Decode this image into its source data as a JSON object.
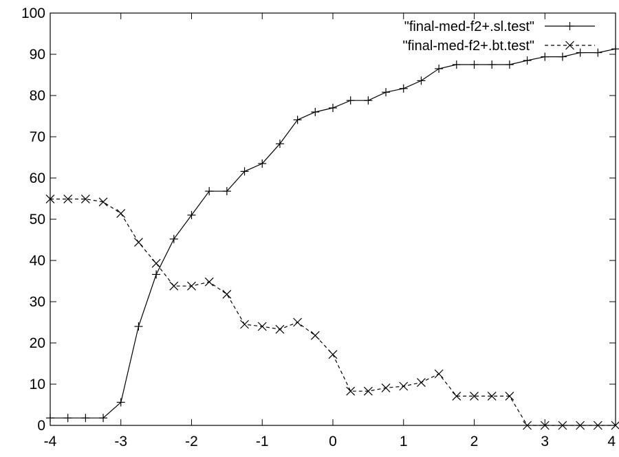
{
  "chart_data": {
    "type": "line",
    "title": "",
    "xlabel": "",
    "ylabel": "",
    "xlim": [
      -4,
      4
    ],
    "ylim": [
      0,
      100
    ],
    "xticks": [
      -4,
      -3,
      -2,
      -1,
      0,
      1,
      2,
      3,
      4
    ],
    "yticks": [
      0,
      10,
      20,
      30,
      40,
      50,
      60,
      70,
      80,
      90,
      100
    ],
    "grid": false,
    "legend_position": "top-right",
    "series": [
      {
        "name": "\"final-med-f2+.sl.test\"",
        "line_style": "solid",
        "marker": "plus",
        "color": "#000000",
        "x": [
          -4,
          -3.75,
          -3.5,
          -3.25,
          -3,
          -2.75,
          -2.5,
          -2.25,
          -2,
          -1.75,
          -1.5,
          -1.25,
          -1,
          -0.75,
          -0.5,
          -0.25,
          0,
          0.25,
          0.5,
          0.75,
          1,
          1.25,
          1.5,
          1.75,
          2,
          2.25,
          2.5,
          2.75,
          3,
          3.25,
          3.5,
          3.75,
          4
        ],
        "y": [
          1.8,
          1.8,
          1.8,
          1.8,
          5.6,
          24,
          36.6,
          45.2,
          51,
          56.8,
          56.8,
          61.6,
          63.5,
          68.3,
          74.1,
          76,
          77,
          78.8,
          78.8,
          80.8,
          81.7,
          83.6,
          86.5,
          87.5,
          87.5,
          87.5,
          87.5,
          88.5,
          89.4,
          89.4,
          90.4,
          90.4,
          91.3
        ]
      },
      {
        "name": "\"final-med-f2+.bt.test\"",
        "line_style": "dashed",
        "marker": "x",
        "color": "#000000",
        "x": [
          -4,
          -3.75,
          -3.5,
          -3.25,
          -3,
          -2.75,
          -2.5,
          -2.25,
          -2,
          -1.75,
          -1.5,
          -1.25,
          -1,
          -0.75,
          -0.5,
          -0.25,
          0,
          0.25,
          0.5,
          0.75,
          1,
          1.25,
          1.5,
          1.75,
          2,
          2.25,
          2.5,
          2.75,
          3,
          3.25,
          3.5,
          3.75,
          4
        ],
        "y": [
          54.9,
          54.9,
          54.9,
          54.2,
          51.4,
          44.4,
          39.3,
          33.8,
          33.8,
          34.8,
          31.8,
          24.5,
          24,
          23.3,
          25,
          21.8,
          17.2,
          8.3,
          8.3,
          9.1,
          9.5,
          10.4,
          12.5,
          7.1,
          7.1,
          7.1,
          7.1,
          0,
          0,
          0,
          0,
          0,
          0
        ]
      }
    ]
  }
}
